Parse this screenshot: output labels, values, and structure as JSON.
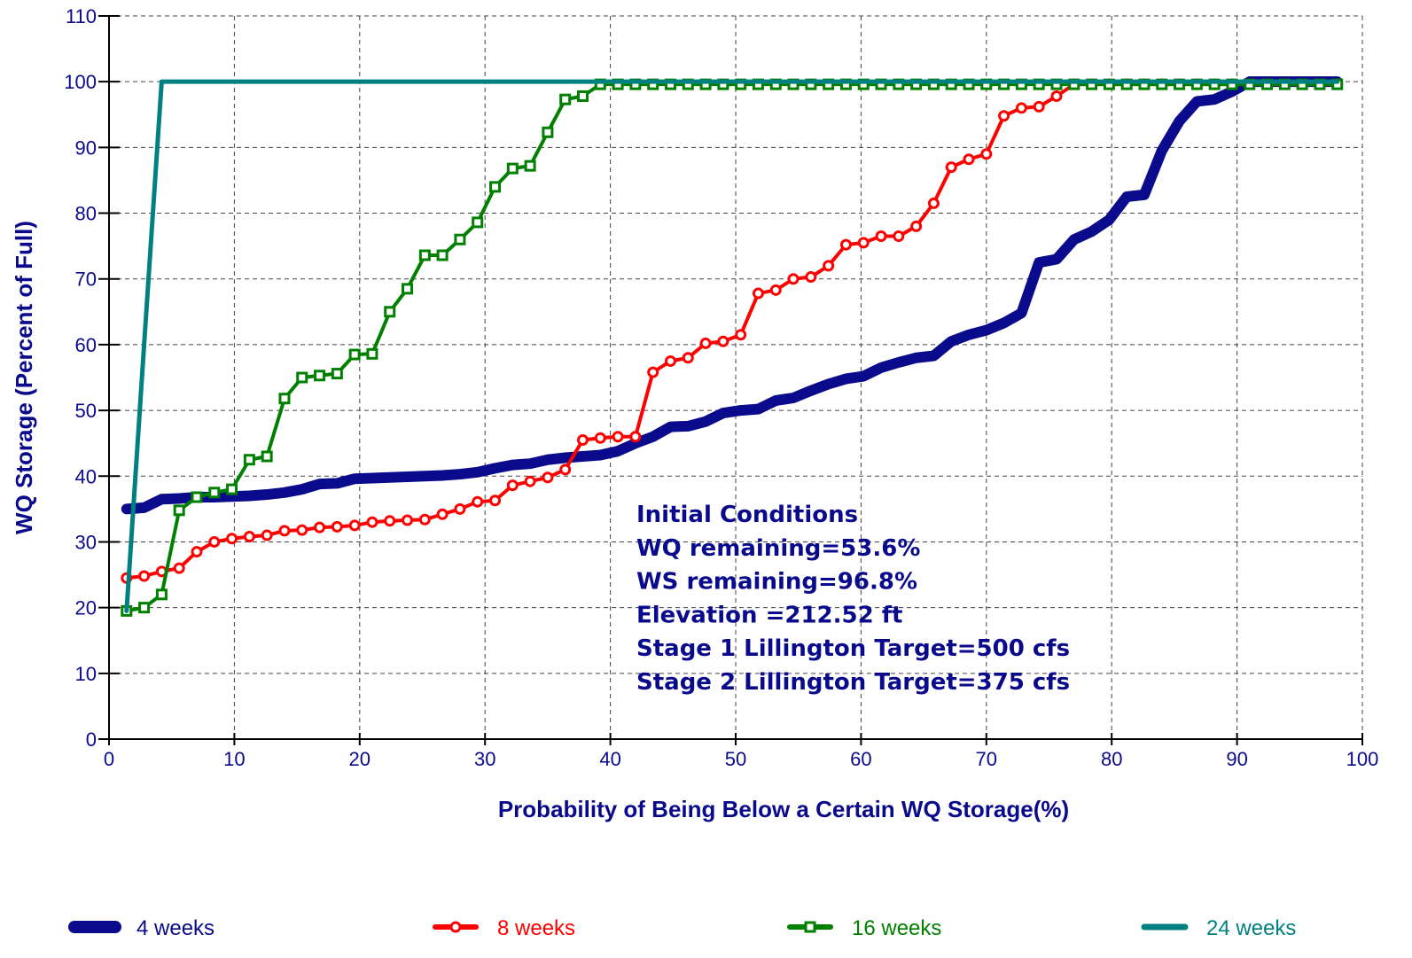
{
  "chart_data": {
    "type": "line",
    "xlabel": "Probability of Being Below a Certain WQ Storage(%)",
    "ylabel": "WQ Storage (Percent of Full)",
    "annotations": [
      "Initial Conditions",
      "WQ remaining=53.6%",
      "WS remaining=96.8%",
      "Elevation =212.52 ft",
      "Stage 1 Lillington Target=500 cfs",
      "Stage 2 Lillington Target=375 cfs"
    ],
    "xlim": [
      0,
      100
    ],
    "ylim": [
      0,
      110
    ],
    "xticks": [
      0,
      10,
      20,
      30,
      40,
      50,
      60,
      70,
      80,
      90,
      100
    ],
    "yticks": [
      0,
      10,
      20,
      30,
      40,
      50,
      60,
      70,
      80,
      90,
      100,
      110
    ],
    "grid": true,
    "legend": "bottom",
    "x": [
      1.4,
      2.8,
      4.2,
      5.6,
      7,
      8.4,
      9.8,
      11.2,
      12.6,
      14,
      15.4,
      16.8,
      18.2,
      19.6,
      21,
      22.4,
      23.8,
      25.2,
      26.6,
      28,
      29.4,
      30.8,
      32.2,
      33.6,
      35,
      36.4,
      37.8,
      39.2,
      40.6,
      42,
      43.4,
      44.8,
      46.2,
      47.6,
      49,
      50.4,
      51.8,
      53.2,
      54.6,
      56,
      57.4,
      58.8,
      60.2,
      61.6,
      63,
      64.4,
      65.8,
      67.2,
      68.6,
      70,
      71.4,
      72.8,
      74.2,
      75.6,
      77,
      78.4,
      79.8,
      81.2,
      82.6,
      84,
      85.4,
      86.8,
      88.2,
      89.6,
      91,
      92.4,
      93.8,
      95.2,
      96.6,
      98
    ],
    "series": [
      {
        "name": "4 weeks",
        "color": "#0a0a8c",
        "line_width": 12,
        "marker": null,
        "values": [
          35,
          35.2,
          36.5,
          36.6,
          36.8,
          36.8,
          36.9,
          37,
          37.2,
          37.5,
          38,
          38.8,
          38.9,
          39.6,
          39.7,
          39.8,
          39.9,
          40,
          40.1,
          40.3,
          40.6,
          41.2,
          41.7,
          41.9,
          42.5,
          42.8,
          43,
          43.2,
          43.8,
          45,
          46,
          47.5,
          47.6,
          48.3,
          49.6,
          50,
          50.2,
          51.5,
          51.9,
          53,
          54,
          54.8,
          55.2,
          56.5,
          57.3,
          58,
          58.3,
          60.5,
          61.5,
          62.2,
          63.3,
          64.8,
          72.5,
          73,
          76,
          77.2,
          79,
          82.5,
          82.8,
          89.5,
          94,
          97,
          97.3,
          98.5,
          100,
          100,
          100,
          100,
          100,
          100
        ]
      },
      {
        "name": "8 weeks",
        "color": "#ff0000",
        "line_width": 4,
        "marker": "circle",
        "values": [
          24.5,
          24.8,
          25.5,
          26,
          28.5,
          30,
          30.5,
          30.8,
          31,
          31.7,
          31.8,
          32.2,
          32.3,
          32.5,
          33,
          33.2,
          33.3,
          33.4,
          34.2,
          35,
          36.1,
          36.3,
          38.6,
          39.2,
          39.8,
          41,
          45.5,
          45.8,
          46,
          46,
          55.8,
          57.5,
          58,
          60.2,
          60.5,
          61.5,
          67.8,
          68.3,
          70,
          70.3,
          72,
          75.2,
          75.5,
          76.5,
          76.5,
          78,
          81.5,
          87,
          88.2,
          89,
          94.8,
          96,
          96.2,
          97.8,
          99.6,
          99.6,
          99.6,
          99.6,
          99.6,
          99.6,
          99.6,
          99.6,
          99.6,
          99.6,
          99.6,
          99.6,
          99.6,
          99.6,
          99.6,
          99.6
        ]
      },
      {
        "name": "16 weeks",
        "color": "#008000",
        "line_width": 4,
        "marker": "square",
        "values": [
          19.5,
          20,
          22,
          34.8,
          36.8,
          37.5,
          38,
          42.5,
          43,
          51.8,
          55,
          55.3,
          55.6,
          58.5,
          58.6,
          65,
          68.5,
          73.6,
          73.6,
          76,
          78.6,
          84,
          86.8,
          87.2,
          92.3,
          97.3,
          97.8,
          99.6,
          99.6,
          99.6,
          99.6,
          99.6,
          99.6,
          99.6,
          99.6,
          99.6,
          99.6,
          99.6,
          99.6,
          99.6,
          99.6,
          99.6,
          99.6,
          99.6,
          99.6,
          99.6,
          99.6,
          99.6,
          99.6,
          99.6,
          99.6,
          99.6,
          99.6,
          99.6,
          99.6,
          99.6,
          99.6,
          99.6,
          99.6,
          99.6,
          99.6,
          99.6,
          99.6,
          99.6,
          99.6,
          99.6,
          99.6,
          99.6,
          99.6,
          99.6
        ]
      },
      {
        "name": "24 weeks",
        "color": "#008080",
        "line_width": 5,
        "marker": null,
        "values": [
          19.5,
          60,
          100,
          100,
          100,
          100,
          100,
          100,
          100,
          100,
          100,
          100,
          100,
          100,
          100,
          100,
          100,
          100,
          100,
          100,
          100,
          100,
          100,
          100,
          100,
          100,
          100,
          100,
          100,
          100,
          100,
          100,
          100,
          100,
          100,
          100,
          100,
          100,
          100,
          100,
          100,
          100,
          100,
          100,
          100,
          100,
          100,
          100,
          100,
          100,
          100,
          100,
          100,
          100,
          100,
          100,
          100,
          100,
          100,
          100,
          100,
          100,
          100,
          100,
          100,
          100,
          100,
          100,
          100,
          100
        ]
      }
    ]
  }
}
